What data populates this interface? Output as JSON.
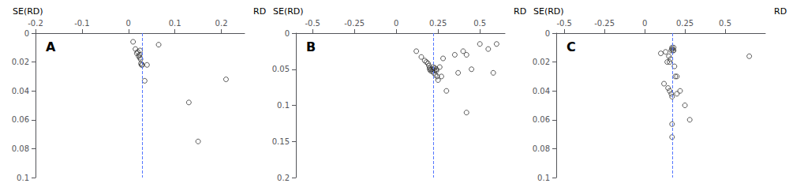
{
  "chart_data": [
    {
      "type": "scatter",
      "title": "A",
      "xlabel": "RD",
      "ylabel": "SE(RD)",
      "x": [
        0.01,
        0.015,
        0.018,
        0.02,
        0.022,
        0.024,
        0.025,
        0.025,
        0.026,
        0.027,
        0.028,
        0.03,
        0.035,
        0.04,
        0.065,
        0.13,
        0.15,
        0.21
      ],
      "values": [
        0.006,
        0.011,
        0.014,
        0.013,
        0.016,
        0.015,
        0.012,
        0.017,
        0.018,
        0.021,
        0.022,
        0.022,
        0.033,
        0.022,
        0.008,
        0.048,
        0.075,
        0.032
      ],
      "color": "#333333",
      "marker": "circle",
      "vline": {
        "x": 0.025,
        "color": "#5577ff",
        "line_style": "dashed"
      },
      "xlim": [
        -0.2,
        0.25
      ],
      "xticks": [
        -0.2,
        -0.1,
        0,
        0.1,
        0.2
      ],
      "ylim": [
        0.1,
        0
      ],
      "yticks": [
        0,
        0.02,
        0.04,
        0.06,
        0.08,
        0.1
      ],
      "grid": false
    },
    {
      "type": "scatter",
      "title": "B",
      "xlabel": "RD",
      "ylabel": "SE(RD)",
      "x": [
        0.12,
        0.15,
        0.17,
        0.18,
        0.19,
        0.195,
        0.2,
        0.2,
        0.205,
        0.21,
        0.215,
        0.22,
        0.22,
        0.225,
        0.23,
        0.23,
        0.235,
        0.24,
        0.24,
        0.245,
        0.25,
        0.26,
        0.27,
        0.28,
        0.3,
        0.35,
        0.37,
        0.4,
        0.42,
        0.45,
        0.5,
        0.55,
        0.58,
        0.6,
        0.42
      ],
      "values": [
        0.025,
        0.033,
        0.038,
        0.04,
        0.042,
        0.045,
        0.048,
        0.05,
        0.052,
        0.05,
        0.053,
        0.047,
        0.05,
        0.055,
        0.048,
        0.052,
        0.058,
        0.05,
        0.052,
        0.06,
        0.065,
        0.047,
        0.06,
        0.035,
        0.08,
        0.03,
        0.055,
        0.025,
        0.03,
        0.05,
        0.015,
        0.022,
        0.055,
        0.015,
        0.11
      ],
      "color": "#333333",
      "marker": "circle",
      "vline": {
        "x": 0.22,
        "color": "#5577ff",
        "line_style": "dashed"
      },
      "xlim": [
        -0.6,
        0.65
      ],
      "xticks": [
        -0.5,
        -0.25,
        0,
        0.25,
        0.5
      ],
      "ylim": [
        0.2,
        0
      ],
      "yticks": [
        0,
        0.05,
        0.1,
        0.15,
        0.2
      ],
      "grid": false
    },
    {
      "type": "scatter",
      "title": "C",
      "xlabel": "RD",
      "ylabel": "SE(RD)",
      "x": [
        0.1,
        0.13,
        0.14,
        0.15,
        0.155,
        0.16,
        0.165,
        0.17,
        0.17,
        0.175,
        0.18,
        0.18,
        0.185,
        0.19,
        0.2,
        0.12,
        0.145,
        0.155,
        0.165,
        0.17,
        0.2,
        0.22,
        0.25,
        0.17,
        0.17,
        0.28,
        0.65
      ],
      "values": [
        0.014,
        0.013,
        0.02,
        0.016,
        0.02,
        0.018,
        0.012,
        0.01,
        0.011,
        0.012,
        0.01,
        0.012,
        0.023,
        0.03,
        0.03,
        0.035,
        0.038,
        0.04,
        0.042,
        0.044,
        0.042,
        0.04,
        0.05,
        0.063,
        0.072,
        0.06,
        0.016
      ],
      "color": "#333333",
      "marker": "circle",
      "vline": {
        "x": 0.17,
        "color": "#5577ff",
        "line_style": "dashed"
      },
      "xlim": [
        -0.55,
        0.75
      ],
      "xticks": [
        -0.5,
        -0.25,
        0,
        0.25,
        0.5
      ],
      "ylim": [
        0.1,
        0
      ],
      "yticks": [
        0,
        0.02,
        0.04,
        0.06,
        0.08,
        0.1
      ],
      "grid": false
    }
  ]
}
